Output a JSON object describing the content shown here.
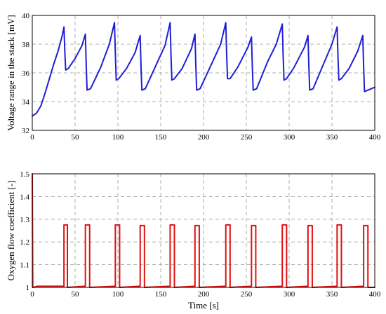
{
  "chart_data": [
    {
      "type": "line",
      "ylabel": "Voltage range in the stack [mV]",
      "xlabel": "",
      "xlim": [
        0,
        400
      ],
      "ylim": [
        32,
        40
      ],
      "xticks": [
        0,
        50,
        100,
        150,
        200,
        250,
        300,
        350,
        400
      ],
      "yticks": [
        32,
        34,
        36,
        38,
        40
      ],
      "xtick_labels": [
        "0",
        "50",
        "100",
        "150",
        "200",
        "250",
        "300",
        "350",
        "400"
      ],
      "ytick_labels": [
        "32",
        "34",
        "36",
        "38",
        "40"
      ],
      "grid": true,
      "color": "#1f1fd6",
      "series": [
        {
          "x": [
            0,
            5,
            10,
            15,
            20,
            25,
            30,
            35,
            37,
            38,
            39,
            42,
            50,
            58,
            62,
            63,
            64,
            68,
            80,
            90,
            96,
            97,
            98,
            101,
            110,
            120,
            126,
            127,
            128,
            132,
            145,
            155,
            161,
            162,
            163,
            166,
            175,
            186,
            190,
            191,
            192,
            196,
            210,
            220,
            226,
            227,
            228,
            231,
            240,
            252,
            256,
            257,
            258,
            262,
            275,
            285,
            292,
            293,
            294,
            297,
            305,
            318,
            322,
            323,
            324,
            328,
            340,
            350,
            356,
            357,
            358,
            361,
            370,
            380,
            386,
            387,
            388,
            392,
            400
          ],
          "y": [
            33.0,
            33.2,
            33.7,
            34.6,
            35.6,
            36.6,
            37.5,
            38.6,
            39.2,
            37.5,
            36.2,
            36.3,
            37.0,
            37.9,
            38.7,
            36.5,
            34.8,
            34.9,
            36.4,
            38.0,
            39.5,
            37.4,
            35.5,
            35.6,
            36.3,
            37.4,
            38.6,
            36.4,
            34.8,
            34.9,
            36.6,
            37.9,
            39.5,
            37.2,
            35.5,
            35.6,
            36.3,
            37.7,
            38.7,
            36.5,
            34.8,
            34.9,
            36.7,
            38.0,
            39.5,
            37.3,
            35.6,
            35.6,
            36.4,
            37.8,
            38.5,
            36.4,
            34.8,
            34.9,
            36.8,
            38.0,
            39.4,
            37.2,
            35.5,
            35.6,
            36.3,
            37.8,
            38.6,
            36.5,
            34.8,
            34.9,
            36.6,
            38.0,
            39.2,
            37.2,
            35.5,
            35.6,
            36.3,
            37.5,
            38.6,
            36.4,
            34.7,
            34.8,
            35.0
          ]
        }
      ]
    },
    {
      "type": "line",
      "ylabel": "Oxygen flow coefficient [-]",
      "xlabel": "Time [s]",
      "xlim": [
        0,
        400
      ],
      "ylim": [
        1,
        1.5
      ],
      "xticks": [
        0,
        50,
        100,
        150,
        200,
        250,
        300,
        350,
        400
      ],
      "yticks": [
        1,
        1.1,
        1.2,
        1.3,
        1.4,
        1.5
      ],
      "xtick_labels": [
        "0",
        "50",
        "100",
        "150",
        "200",
        "250",
        "300",
        "350",
        "400"
      ],
      "ytick_labels": [
        "1",
        "1.1",
        "1.2",
        "1.3",
        "1.4",
        "1.5"
      ],
      "grid": true,
      "color": "#e01010",
      "series": [
        {
          "x": [
            0,
            0.6,
            1.2,
            6,
            37,
            37,
            41,
            41,
            62,
            62,
            67,
            67,
            97,
            97,
            102,
            102,
            126,
            126,
            131,
            131,
            161,
            161,
            166,
            166,
            190,
            190,
            195,
            195,
            226,
            226,
            231,
            231,
            256,
            256,
            261,
            261,
            292,
            292,
            297,
            297,
            322,
            322,
            327,
            327,
            356,
            356,
            361,
            361,
            387,
            387,
            392,
            392,
            400
          ],
          "y": [
            1.5,
            1.0,
            1.0,
            1.005,
            1.005,
            1.275,
            1.275,
            1.0,
            1.005,
            1.275,
            1.275,
            1.0,
            1.005,
            1.275,
            1.275,
            1.0,
            1.005,
            1.272,
            1.272,
            1.0,
            1.005,
            1.275,
            1.275,
            1.0,
            1.005,
            1.272,
            1.272,
            1.0,
            1.005,
            1.275,
            1.275,
            1.0,
            1.005,
            1.272,
            1.272,
            1.0,
            1.005,
            1.275,
            1.275,
            1.0,
            1.005,
            1.272,
            1.272,
            1.0,
            1.005,
            1.275,
            1.275,
            1.0,
            1.005,
            1.272,
            1.272,
            1.0,
            1.0
          ]
        }
      ]
    }
  ]
}
